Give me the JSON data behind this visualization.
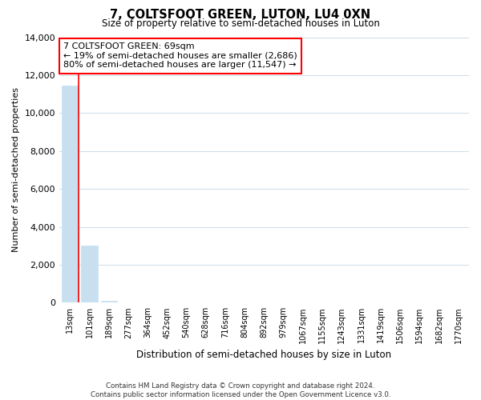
{
  "title": "7, COLTSFOOT GREEN, LUTON, LU4 0XN",
  "subtitle": "Size of property relative to semi-detached houses in Luton",
  "xlabel": "Distribution of semi-detached houses by size in Luton",
  "ylabel": "Number of semi-detached properties",
  "bar_labels": [
    "13sqm",
    "101sqm",
    "189sqm",
    "277sqm",
    "364sqm",
    "452sqm",
    "540sqm",
    "628sqm",
    "716sqm",
    "804sqm",
    "892sqm",
    "979sqm",
    "1067sqm",
    "1155sqm",
    "1243sqm",
    "1331sqm",
    "1419sqm",
    "1506sqm",
    "1594sqm",
    "1682sqm",
    "1770sqm"
  ],
  "bar_values": [
    11450,
    3000,
    100,
    0,
    0,
    0,
    0,
    0,
    0,
    0,
    0,
    0,
    0,
    0,
    0,
    0,
    0,
    0,
    0,
    0,
    0
  ],
  "bar_color": "#c8dff0",
  "red_line_bar_index": 0,
  "ylim": [
    0,
    14000
  ],
  "yticks": [
    0,
    2000,
    4000,
    6000,
    8000,
    10000,
    12000,
    14000
  ],
  "annotation_box_text": "7 COLTSFOOT GREEN: 69sqm\n← 19% of semi-detached houses are smaller (2,686)\n80% of semi-detached houses are larger (11,547) →",
  "footer_line1": "Contains HM Land Registry data © Crown copyright and database right 2024.",
  "footer_line2": "Contains public sector information licensed under the Open Government Licence v3.0.",
  "grid_color": "#ccdde8",
  "background_color": "#ffffff",
  "fig_width": 6.0,
  "fig_height": 5.0,
  "dpi": 100
}
